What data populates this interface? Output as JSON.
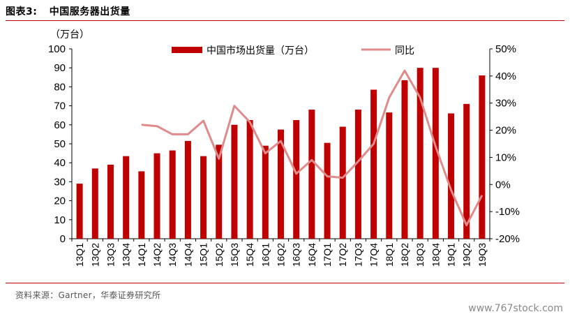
{
  "figure": {
    "number": "图表3:",
    "title": "中国服务器出货量"
  },
  "source": "资料来源：Gartner，华泰证券研究所",
  "watermark": "www.767stock.com",
  "colors": {
    "bar": "#c00000",
    "line": "#e08a8a",
    "rule": "#c00000"
  },
  "chart_data": {
    "type": "bar",
    "title": "",
    "unit_label_left": "（万台）",
    "categories": [
      "13Q1",
      "13Q2",
      "13Q3",
      "13Q4",
      "14Q1",
      "14Q2",
      "14Q3",
      "14Q4",
      "15Q1",
      "15Q2",
      "15Q3",
      "15Q4",
      "16Q1",
      "16Q2",
      "16Q3",
      "16Q4",
      "17Q1",
      "17Q2",
      "17Q3",
      "17Q4",
      "18Q1",
      "18Q2",
      "18Q3",
      "18Q4",
      "19Q1",
      "19Q2",
      "19Q3"
    ],
    "series": [
      {
        "name": "中国市场出货量（万台）",
        "type": "bar",
        "axis": "left",
        "values": [
          29,
          37,
          39,
          43.5,
          35.5,
          45,
          46.5,
          51.5,
          43.5,
          49.5,
          60,
          62.5,
          49,
          57.5,
          62.5,
          68,
          50.5,
          59,
          68,
          78.5,
          66.5,
          83.5,
          90,
          90,
          66,
          71,
          86
        ]
      },
      {
        "name": "同比",
        "type": "line",
        "axis": "right",
        "values": [
          null,
          null,
          null,
          null,
          22,
          21.5,
          18.5,
          18.5,
          23.5,
          9.5,
          29,
          23,
          11.5,
          16,
          4,
          9,
          3,
          2.5,
          8.5,
          15,
          32,
          42,
          32,
          14,
          -2,
          -15,
          -4
        ]
      }
    ],
    "y_left": {
      "min": 0,
      "max": 100,
      "ticks": [
        "0",
        "10",
        "20",
        "30",
        "40",
        "50",
        "60",
        "70",
        "80",
        "90",
        "100"
      ]
    },
    "y_right": {
      "min": -20,
      "max": 50,
      "ticks": [
        "-20%",
        "-10%",
        "0%",
        "10%",
        "20%",
        "30%",
        "40%",
        "50%"
      ]
    },
    "legend_position": "top-center",
    "grid": false
  }
}
